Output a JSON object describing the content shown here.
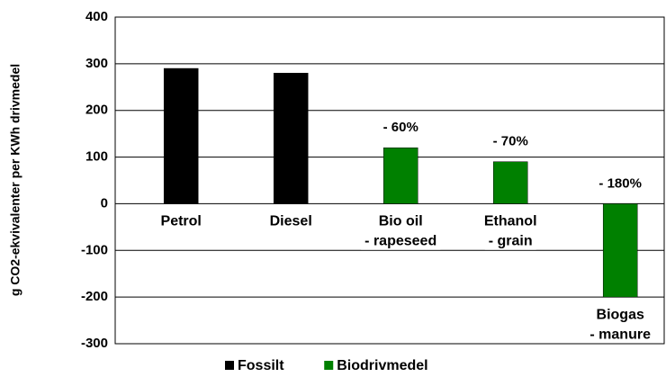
{
  "chart_data": {
    "type": "bar",
    "ylabel": "g CO2-ekvivalenter per KWh drivmedel",
    "categories": [
      [
        "Petrol"
      ],
      [
        "Diesel"
      ],
      [
        "Bio oil",
        "- rapeseed"
      ],
      [
        "Ethanol",
        "- grain"
      ],
      [
        "Biogas",
        "- manure"
      ]
    ],
    "series": [
      {
        "name": "Fossilt",
        "color": "#000000",
        "values": [
          290,
          280,
          null,
          null,
          null
        ]
      },
      {
        "name": "Biodrivmedel",
        "color": "#008000",
        "values": [
          null,
          null,
          120,
          90,
          -200
        ]
      }
    ],
    "annotations": [
      null,
      null,
      "- 60%",
      "- 70%",
      "- 180%"
    ],
    "ylim": [
      -300,
      400
    ],
    "yticks": [
      -300,
      -200,
      -100,
      0,
      100,
      200,
      300,
      400
    ],
    "grid": true,
    "legend": "bottom"
  }
}
